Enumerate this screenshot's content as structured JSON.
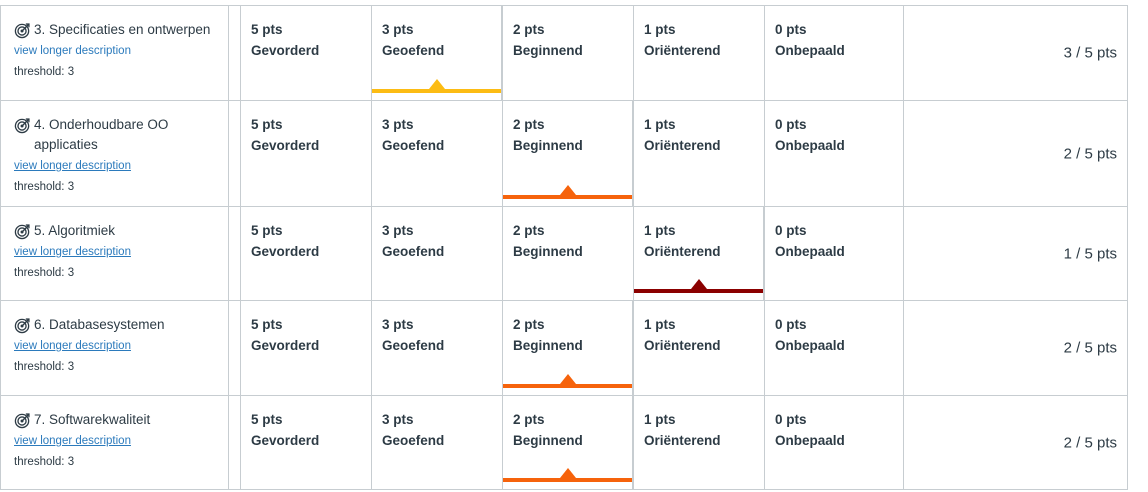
{
  "rubric": {
    "ratings_template": [
      {
        "pts": "5 pts",
        "label": "Gevorderd"
      },
      {
        "pts": "3 pts",
        "label": "Geoefend"
      },
      {
        "pts": "2 pts",
        "label": "Beginnend"
      },
      {
        "pts": "1 pts",
        "label": "Oriënterend"
      },
      {
        "pts": "0 pts",
        "label": "Onbepaald"
      }
    ],
    "criteria": [
      {
        "title": "3. Specificaties en ontwerpen",
        "link": "view longer description",
        "threshold": "threshold: 3",
        "selected_index": 1,
        "selected_color": "#fcbc14",
        "score": "3 / 5 pts",
        "icon": "outcome-target-icon"
      },
      {
        "title": "4. Onderhoudbare OO applicaties",
        "link": "view longer description",
        "threshold": "threshold: 3",
        "selected_index": 2,
        "selected_color": "#f6630c",
        "score": "2 / 5 pts",
        "icon": "outcome-target-icon"
      },
      {
        "title": "5. Algoritmiek",
        "link": "view longer description",
        "threshold": "threshold: 3",
        "selected_index": 3,
        "selected_color": "#8b0000",
        "score": "1 / 5 pts",
        "icon": "outcome-target-icon"
      },
      {
        "title": "6. Databasesystemen",
        "link": "view longer description",
        "threshold": "threshold: 3",
        "selected_index": 2,
        "selected_color": "#f6630c",
        "score": "2 / 5 pts",
        "icon": "outcome-target-icon"
      },
      {
        "title": "7. Softwarekwaliteit",
        "link": "view longer description",
        "threshold": "threshold: 3",
        "selected_index": 2,
        "selected_color": "#f6630c",
        "score": "2 / 5 pts",
        "icon": "outcome-target-icon"
      }
    ]
  }
}
